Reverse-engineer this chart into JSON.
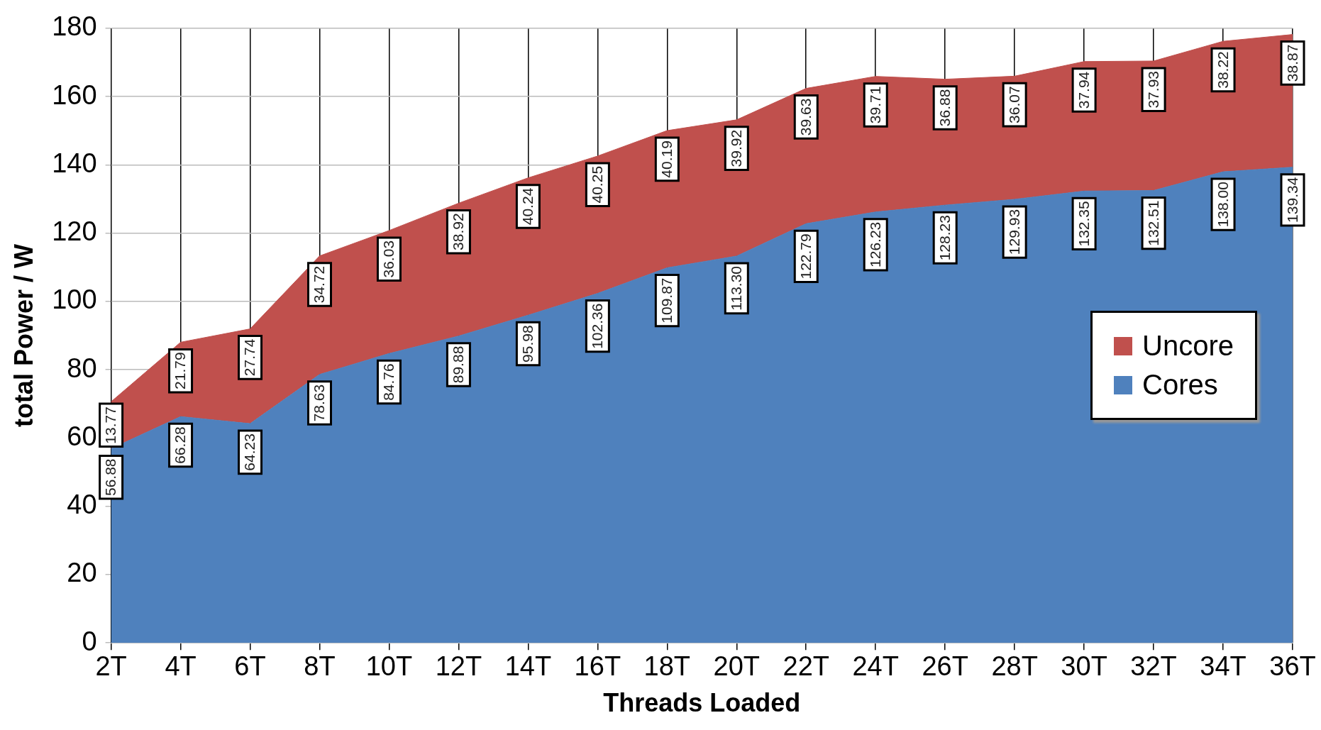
{
  "chart_data": {
    "type": "area",
    "xlabel": "Threads Loaded",
    "ylabel": "total Power / W",
    "categories": [
      "2T",
      "4T",
      "6T",
      "8T",
      "10T",
      "12T",
      "14T",
      "16T",
      "18T",
      "20T",
      "22T",
      "24T",
      "26T",
      "28T",
      "30T",
      "32T",
      "34T",
      "36T"
    ],
    "stacked": true,
    "ylim": [
      0,
      180
    ],
    "yticks": [
      0,
      20,
      40,
      60,
      80,
      100,
      120,
      140,
      160,
      180
    ],
    "grid": true,
    "legend": "right",
    "series": [
      {
        "name": "Cores",
        "color": "#4f81bd",
        "values": [
          56.88,
          66.28,
          64.23,
          78.63,
          84.76,
          89.88,
          95.98,
          102.36,
          109.87,
          113.3,
          122.79,
          126.23,
          128.23,
          129.93,
          132.35,
          132.51,
          138.0,
          139.34
        ],
        "value_labels": [
          "56.88",
          "66.28",
          "64.23",
          "78.63",
          "84.76",
          "89.88",
          "95.98",
          "102.36",
          "109.87",
          "113.30",
          "122.79",
          "126.23",
          "128.23",
          "129.93",
          "132.35",
          "132.51",
          "138.00",
          "139.34"
        ]
      },
      {
        "name": "Uncore",
        "color": "#c0504d",
        "values": [
          13.77,
          21.79,
          27.74,
          34.72,
          36.03,
          38.92,
          40.24,
          40.25,
          40.19,
          39.92,
          39.63,
          39.71,
          36.88,
          36.07,
          37.94,
          37.93,
          38.22,
          38.87
        ],
        "value_labels": [
          "13.77",
          "21.79",
          "27.74",
          "34.72",
          "36.03",
          "38.92",
          "40.24",
          "40.25",
          "40.19",
          "39.92",
          "39.63",
          "39.71",
          "36.88",
          "36.07",
          "37.94",
          "37.93",
          "38.22",
          "38.87"
        ]
      }
    ]
  }
}
